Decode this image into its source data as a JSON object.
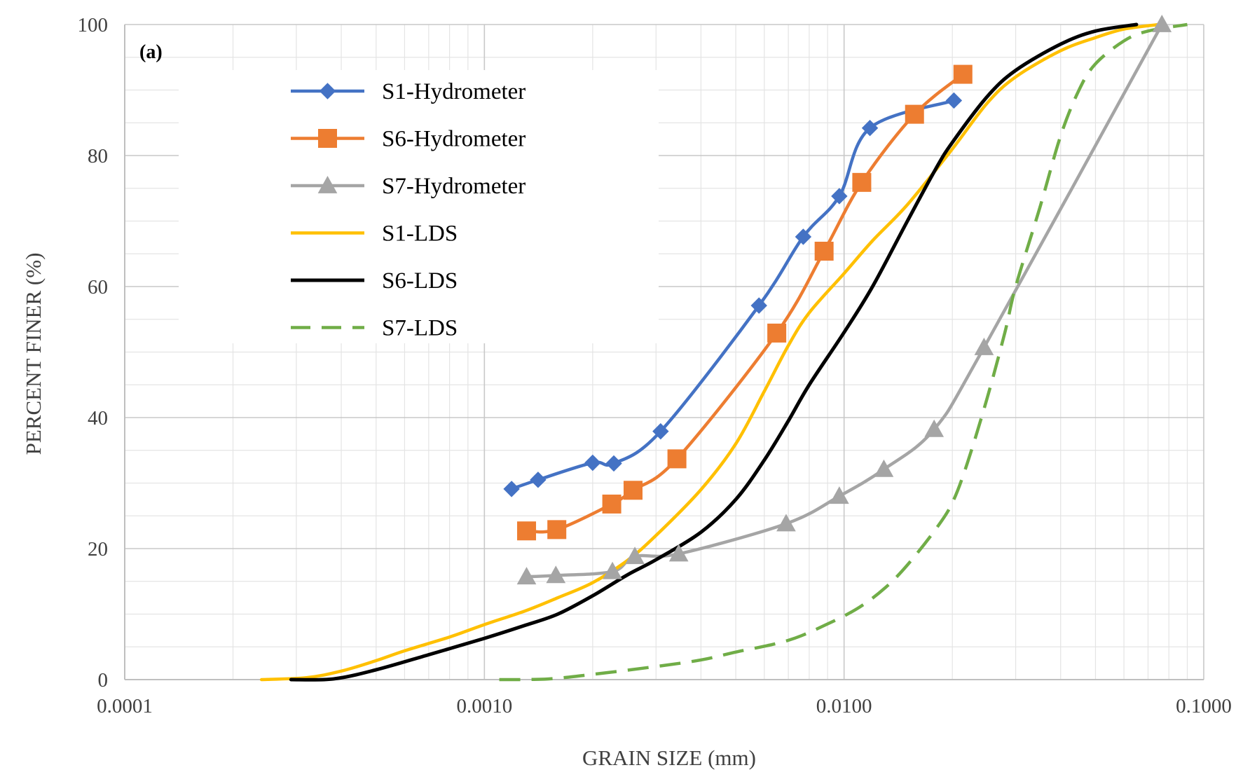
{
  "chart_data": {
    "type": "line",
    "panel_label": "(a)",
    "xlabel": "GRAIN SIZE (mm)",
    "ylabel": "PERCENT FINER (%)",
    "x_scale": "log",
    "xlim": [
      0.0001,
      0.1
    ],
    "ylim": [
      0,
      100
    ],
    "x_ticks": [
      {
        "value": 0.0001,
        "label": "0.0001"
      },
      {
        "value": 0.001,
        "label": "0.0010"
      },
      {
        "value": 0.01,
        "label": "0.0100"
      },
      {
        "value": 0.1,
        "label": "0.1000"
      }
    ],
    "y_ticks": [
      {
        "value": 0,
        "label": "0"
      },
      {
        "value": 20,
        "label": "20"
      },
      {
        "value": 40,
        "label": "40"
      },
      {
        "value": 60,
        "label": "60"
      },
      {
        "value": 80,
        "label": "80"
      },
      {
        "value": 100,
        "label": "100"
      }
    ],
    "grid": true,
    "legend_position": "upper-left",
    "series": [
      {
        "name": "S1-Hydrometer",
        "color": "#4472c4",
        "marker": "diamond",
        "line": "solid",
        "points": [
          [
            0.00119,
            29.1
          ],
          [
            0.00141,
            30.5
          ],
          [
            0.002,
            33.1
          ],
          [
            0.00229,
            33.0
          ],
          [
            0.00309,
            37.9
          ],
          [
            0.0058,
            57.1
          ],
          [
            0.0077,
            67.6
          ],
          [
            0.0097,
            73.8
          ],
          [
            0.0118,
            84.2
          ],
          [
            0.0202,
            88.4
          ]
        ]
      },
      {
        "name": "S6-Hydrometer",
        "color": "#ed7d31",
        "marker": "square",
        "line": "solid",
        "points": [
          [
            0.00131,
            22.7
          ],
          [
            0.00159,
            22.9
          ],
          [
            0.00226,
            26.8
          ],
          [
            0.00259,
            28.9
          ],
          [
            0.00343,
            33.7
          ],
          [
            0.0065,
            52.9
          ],
          [
            0.0088,
            65.4
          ],
          [
            0.0112,
            75.9
          ],
          [
            0.0157,
            86.3
          ],
          [
            0.0214,
            92.4
          ]
        ]
      },
      {
        "name": "S7-Hydrometer",
        "color": "#a5a5a5",
        "marker": "triangle",
        "line": "solid",
        "points": [
          [
            0.00131,
            15.7
          ],
          [
            0.00158,
            15.9
          ],
          [
            0.00227,
            16.5
          ],
          [
            0.00262,
            18.8
          ],
          [
            0.00347,
            19.2
          ],
          [
            0.0069,
            23.8
          ],
          [
            0.0097,
            28.0
          ],
          [
            0.0129,
            32.1
          ],
          [
            0.0178,
            38.2
          ],
          [
            0.0245,
            50.7
          ],
          [
            0.0765,
            100
          ]
        ]
      },
      {
        "name": "S1-LDS",
        "color": "#ffc000",
        "marker": "none",
        "line": "solid",
        "points": [
          [
            0.00024,
            0
          ],
          [
            0.00032,
            0.3
          ],
          [
            0.0004,
            1.3
          ],
          [
            0.0005,
            2.9
          ],
          [
            0.0006,
            4.4
          ],
          [
            0.0008,
            6.5
          ],
          [
            0.001,
            8.4
          ],
          [
            0.0013,
            10.5
          ],
          [
            0.0016,
            12.5
          ],
          [
            0.002,
            14.8
          ],
          [
            0.0025,
            18.2
          ],
          [
            0.003,
            22.0
          ],
          [
            0.004,
            29.0
          ],
          [
            0.005,
            36.0
          ],
          [
            0.006,
            44.0
          ],
          [
            0.007,
            51.0
          ],
          [
            0.008,
            56.0
          ],
          [
            0.01,
            62.0
          ],
          [
            0.012,
            67.0
          ],
          [
            0.015,
            72.5
          ],
          [
            0.02,
            81.0
          ],
          [
            0.025,
            88.0
          ],
          [
            0.03,
            92.0
          ],
          [
            0.04,
            96.0
          ],
          [
            0.05,
            98.0
          ],
          [
            0.06,
            99.3
          ],
          [
            0.075,
            100
          ]
        ]
      },
      {
        "name": "S6-LDS",
        "color": "#000000",
        "marker": "none",
        "line": "solid",
        "points": [
          [
            0.00029,
            0
          ],
          [
            0.00038,
            0.1
          ],
          [
            0.0005,
            1.5
          ],
          [
            0.0007,
            3.8
          ],
          [
            0.001,
            6.3
          ],
          [
            0.0013,
            8.3
          ],
          [
            0.0016,
            10.0
          ],
          [
            0.002,
            12.8
          ],
          [
            0.0025,
            16.0
          ],
          [
            0.003,
            18.3
          ],
          [
            0.004,
            22.5
          ],
          [
            0.005,
            27.5
          ],
          [
            0.006,
            33.5
          ],
          [
            0.007,
            39.5
          ],
          [
            0.008,
            45.0
          ],
          [
            0.01,
            53.0
          ],
          [
            0.012,
            60.0
          ],
          [
            0.015,
            70.0
          ],
          [
            0.018,
            78.0
          ],
          [
            0.02,
            82.0
          ],
          [
            0.025,
            89.0
          ],
          [
            0.03,
            93.0
          ],
          [
            0.04,
            97.0
          ],
          [
            0.05,
            99.0
          ],
          [
            0.065,
            100
          ]
        ]
      },
      {
        "name": "S7-LDS",
        "color": "#70ad47",
        "marker": "none",
        "line": "dashed",
        "points": [
          [
            0.0011,
            0
          ],
          [
            0.0015,
            0.1
          ],
          [
            0.002,
            0.8
          ],
          [
            0.003,
            2.0
          ],
          [
            0.004,
            3.0
          ],
          [
            0.005,
            4.2
          ],
          [
            0.007,
            6.0
          ],
          [
            0.009,
            8.5
          ],
          [
            0.011,
            11.0
          ],
          [
            0.013,
            14.0
          ],
          [
            0.015,
            17.5
          ],
          [
            0.018,
            23.0
          ],
          [
            0.02,
            27.0
          ],
          [
            0.022,
            33.0
          ],
          [
            0.025,
            43.0
          ],
          [
            0.028,
            53.0
          ],
          [
            0.03,
            60.0
          ],
          [
            0.035,
            72.0
          ],
          [
            0.04,
            83.0
          ],
          [
            0.045,
            90.0
          ],
          [
            0.05,
            94.0
          ],
          [
            0.06,
            97.5
          ],
          [
            0.07,
            99.0
          ],
          [
            0.09,
            100
          ]
        ]
      }
    ]
  }
}
